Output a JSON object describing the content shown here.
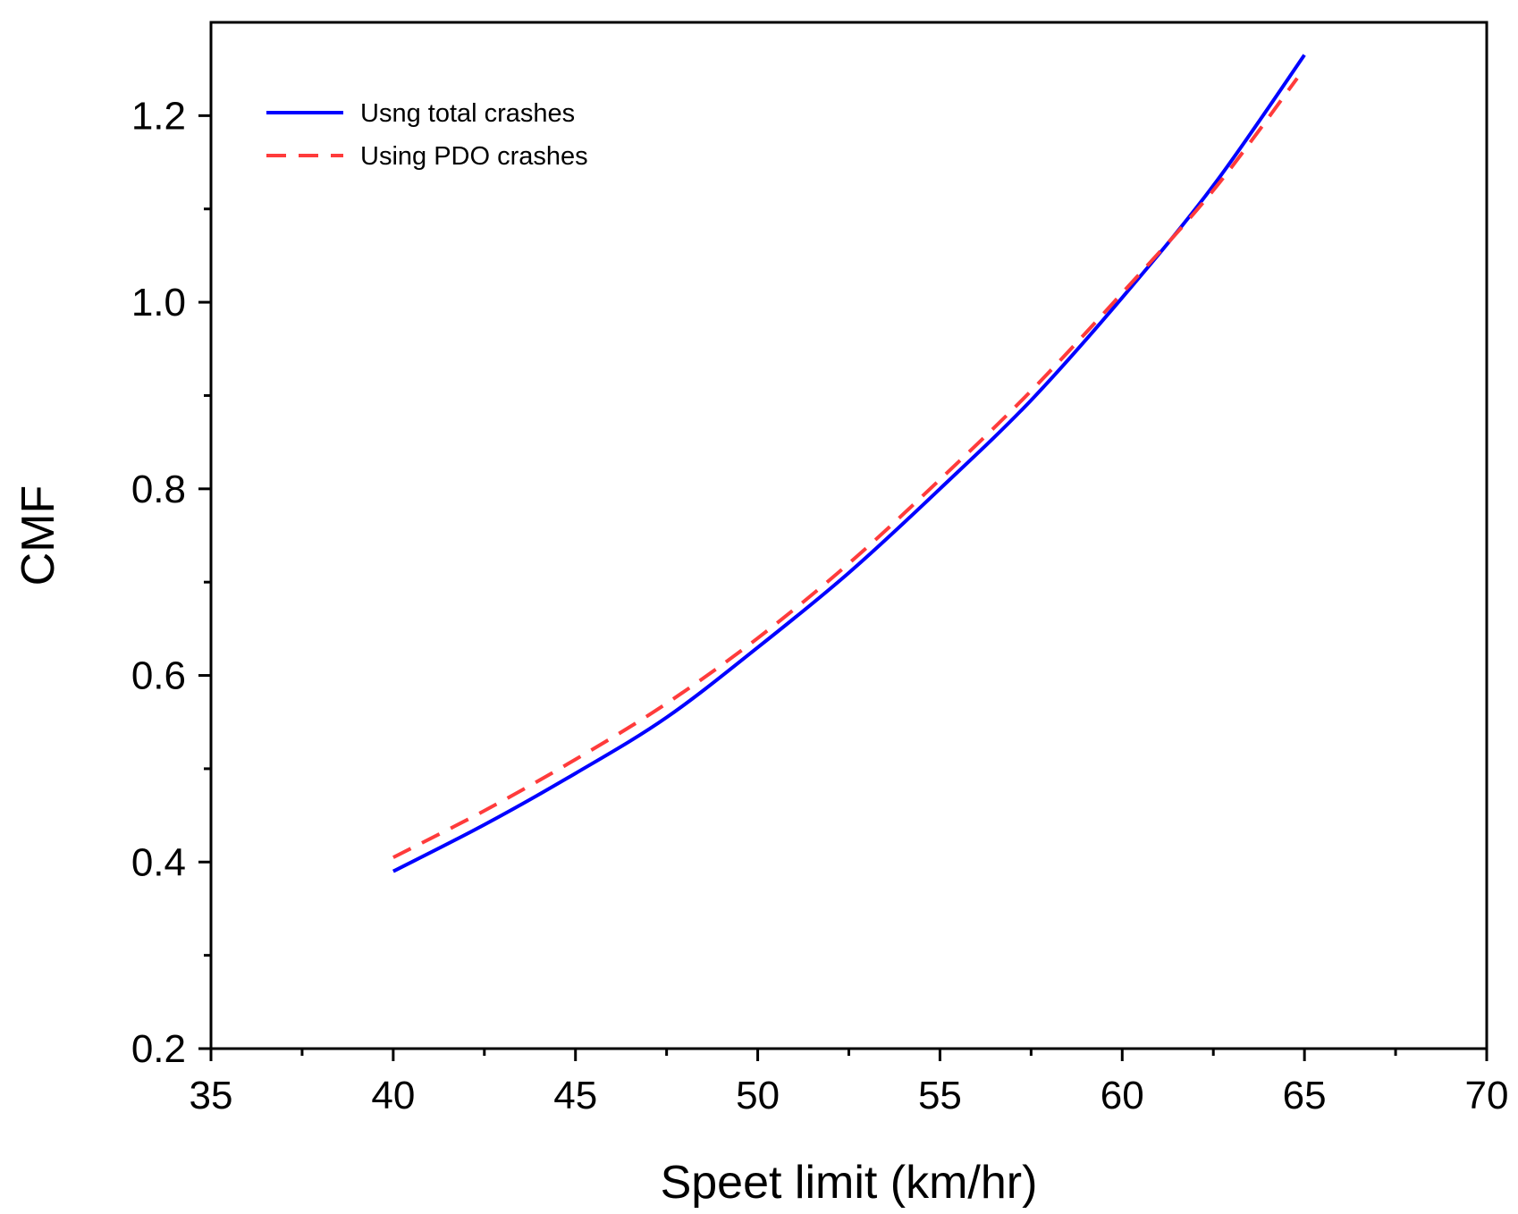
{
  "chart_data": {
    "type": "line",
    "title": "",
    "xlabel": "Speet limit (km/hr)",
    "ylabel": "CMF",
    "xlim": [
      35,
      70
    ],
    "ylim": [
      0.2,
      1.3
    ],
    "x_ticks": [
      35,
      40,
      45,
      50,
      55,
      60,
      65,
      70
    ],
    "x_tick_labels": [
      "35",
      "40",
      "45",
      "50",
      "55",
      "60",
      "65",
      "70"
    ],
    "x_minor_ticks": [
      37.5,
      42.5,
      47.5,
      52.5,
      57.5,
      62.5,
      67.5
    ],
    "y_ticks": [
      0.2,
      0.4,
      0.6,
      0.8,
      1.0,
      1.2
    ],
    "y_tick_labels": [
      "0.2",
      "0.4",
      "0.6",
      "0.8",
      "1.0",
      "1.2"
    ],
    "y_minor_ticks": [
      0.3,
      0.5,
      0.7,
      0.9,
      1.1
    ],
    "grid": false,
    "legend_position": "top-left",
    "series": [
      {
        "name": "Usng total crashes",
        "color": "#0000ff",
        "style": "solid",
        "x": [
          40,
          42.5,
          45,
          47.5,
          50,
          52.5,
          55,
          57.5,
          60,
          62.5,
          65
        ],
        "values": [
          0.39,
          0.44,
          0.495,
          0.555,
          0.63,
          0.71,
          0.8,
          0.895,
          1.005,
          1.125,
          1.265
        ]
      },
      {
        "name": "Using PDO crashes",
        "color": "#ff3b3b",
        "style": "dashed",
        "x": [
          40,
          42.5,
          45,
          47.5,
          50,
          52.5,
          55,
          57.5,
          60,
          62.5,
          64.8
        ],
        "values": [
          0.405,
          0.455,
          0.51,
          0.57,
          0.64,
          0.72,
          0.81,
          0.905,
          1.01,
          1.12,
          1.24
        ]
      }
    ]
  }
}
